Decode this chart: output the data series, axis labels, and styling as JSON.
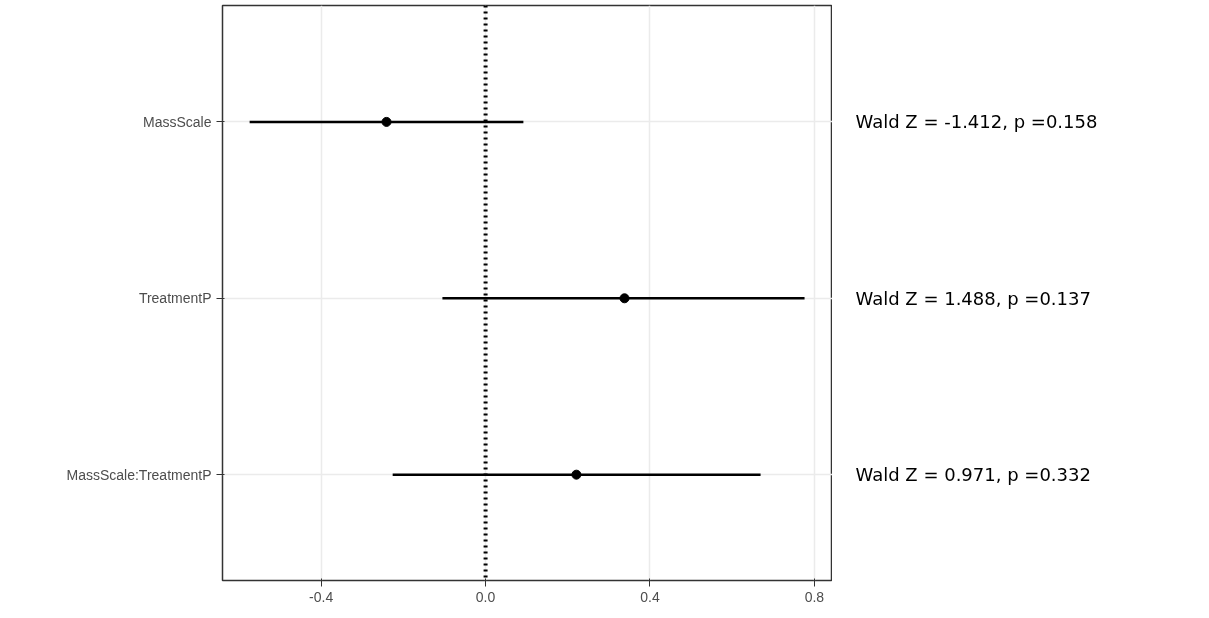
{
  "chart_data": {
    "type": "scatter",
    "orientation": "horizontal",
    "marker": "circle",
    "categories": [
      "MassScale",
      "TreatmentP",
      "MassScale:TreatmentP"
    ],
    "values": [
      -0.241,
      0.338,
      0.221
    ],
    "errors": [
      [
        -0.574,
        0.092
      ],
      [
        -0.105,
        0.776
      ],
      [
        -0.226,
        0.669
      ]
    ],
    "color": "#000000",
    "xlim": [
      -0.64,
      0.844
    ],
    "xticks": [
      -0.4,
      {
        "value": 0,
        "label": "0.0"
      },
      0.4,
      0.8
    ],
    "grid": true,
    "ref_lines": [
      {
        "axis": "x",
        "value": 0,
        "line_style": "dotted",
        "color": "#000000"
      }
    ],
    "annotations": [
      "Wald Z = -1.412, p =0.158",
      "Wald Z = 1.488, p =0.137",
      "Wald Z = 0.971, p =0.332"
    ]
  }
}
